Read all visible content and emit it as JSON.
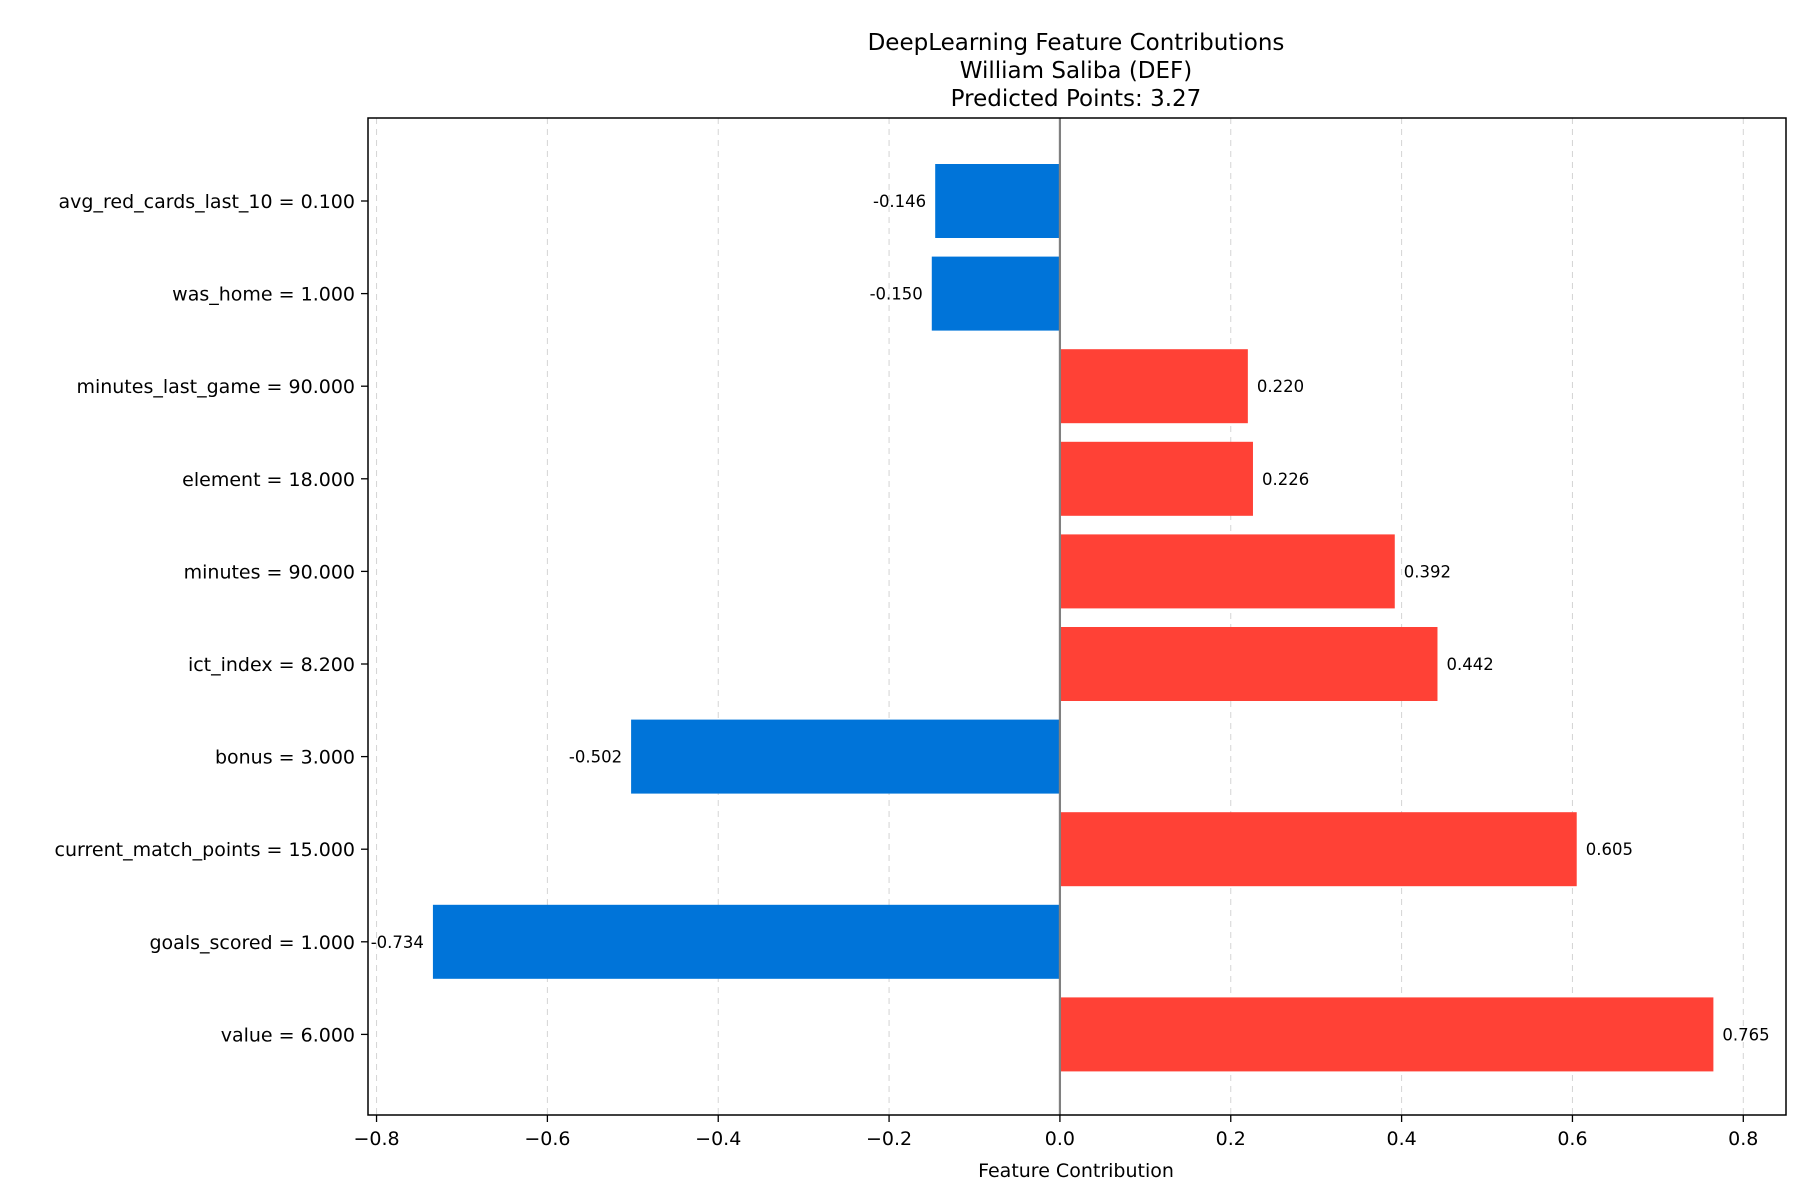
{
  "chart_data": {
    "type": "bar",
    "orientation": "horizontal",
    "title": "DeepLearning Feature Contributions",
    "subtitle": "William Saliba (DEF)",
    "subtitle2": "Predicted Points: 3.27",
    "xlabel": "Feature Contribution",
    "ylabel": "",
    "xlim": [
      -0.81,
      0.85
    ],
    "xticks": [
      -0.8,
      -0.6,
      -0.4,
      -0.2,
      0.0,
      0.2,
      0.4,
      0.6,
      0.8
    ],
    "xtick_labels": [
      "−0.8",
      "−0.6",
      "−0.4",
      "−0.2",
      "0.0",
      "0.2",
      "0.4",
      "0.6",
      "0.8"
    ],
    "grid": "x-dashed",
    "categories": [
      "avg_red_cards_last_10 = 0.100",
      "was_home = 1.000",
      "minutes_last_game = 90.000",
      "element = 18.000",
      "minutes = 90.000",
      "ict_index = 8.200",
      "bonus = 3.000",
      "current_match_points = 15.000",
      "goals_scored = 1.000",
      "value = 6.000"
    ],
    "values": [
      -0.146,
      -0.15,
      0.22,
      0.226,
      0.392,
      0.442,
      -0.502,
      0.605,
      -0.734,
      0.765
    ],
    "value_labels": [
      "-0.146",
      "-0.150",
      "0.220",
      "0.226",
      "0.392",
      "0.442",
      "-0.502",
      "0.605",
      "-0.734",
      "0.765"
    ],
    "colors": {
      "positive": "#ff4136",
      "negative": "#0074d9",
      "zero_line": "#808080"
    }
  }
}
